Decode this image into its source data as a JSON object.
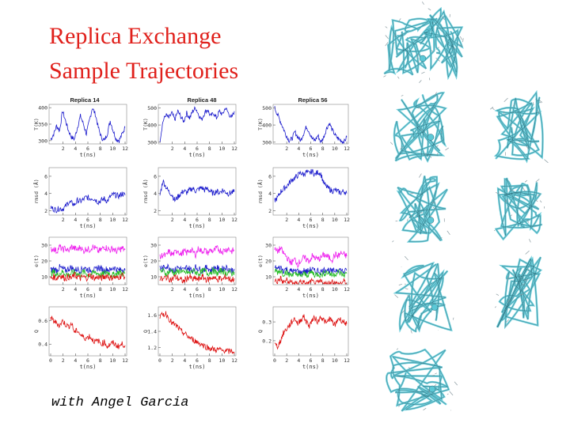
{
  "title": {
    "line1": "Replica Exchange",
    "line2": "Sample Trajectories"
  },
  "credit": "with Angel Garcia",
  "colors": {
    "title": "#e0201b",
    "blue": "#1a1acc",
    "red": "#dd1111",
    "magenta": "#ee22ee",
    "green": "#22bb22",
    "protein": "#5bc8d6"
  },
  "columns": [
    "Replica 14",
    "Replica 48",
    "Replica 56"
  ],
  "chart_data": [
    {
      "type": "line",
      "replica": "Replica 14",
      "ylabel": "T(K)",
      "xlabel": "t(ns)",
      "xticks": [
        2,
        4,
        6,
        8,
        10,
        12
      ],
      "yticks": [
        300,
        350,
        400
      ],
      "ylim": [
        290,
        410
      ],
      "series": [
        {
          "color": "#1a1acc",
          "values": [
            303,
            320,
            345,
            330,
            390,
            360,
            330,
            310,
            305,
            340,
            375,
            350,
            320,
            360,
            400,
            380,
            340,
            310,
            300,
            320,
            360,
            330,
            305,
            300,
            320,
            340
          ]
        }
      ]
    },
    {
      "type": "line",
      "replica": "Replica 48",
      "ylabel": "T(K)",
      "xlabel": "t(ns)",
      "xticks": [
        2,
        4,
        6,
        8,
        10,
        12
      ],
      "yticks": [
        300,
        400,
        500
      ],
      "ylim": [
        290,
        520
      ],
      "series": [
        {
          "color": "#1a1acc",
          "values": [
            310,
            420,
            460,
            440,
            470,
            430,
            480,
            450,
            420,
            470,
            440,
            480,
            500,
            460,
            430,
            470,
            490,
            450,
            470,
            440,
            480,
            460,
            500,
            470,
            440,
            480
          ]
        }
      ]
    },
    {
      "type": "line",
      "replica": "Replica 56",
      "ylabel": "T(K)",
      "xlabel": "t(ns)",
      "xticks": [
        2,
        4,
        6,
        8,
        10,
        12
      ],
      "yticks": [
        300,
        400,
        500
      ],
      "ylim": [
        290,
        520
      ],
      "series": [
        {
          "color": "#1a1acc",
          "values": [
            500,
            460,
            420,
            380,
            340,
            310,
            320,
            360,
            330,
            310,
            350,
            390,
            360,
            320,
            310,
            340,
            300,
            330,
            380,
            410,
            370,
            340,
            320,
            310,
            300,
            330
          ]
        }
      ]
    },
    {
      "type": "line",
      "ylabel": "rmsd (Å)",
      "xlabel": "t(ns)",
      "xticks": [
        2,
        4,
        6,
        8,
        10,
        12
      ],
      "yticks": [
        2,
        4,
        6
      ],
      "ylim": [
        1.5,
        7
      ],
      "series": [
        {
          "color": "#1a1acc",
          "values": [
            2.4,
            2.2,
            2.1,
            2.3,
            2.2,
            2.5,
            3.0,
            2.9,
            2.7,
            3.2,
            3.1,
            3.3,
            3.6,
            3.4,
            3.5,
            3.3,
            3.0,
            3.2,
            3.4,
            3.1,
            3.6,
            3.9,
            3.8,
            3.7,
            4.0,
            3.8
          ]
        }
      ]
    },
    {
      "type": "line",
      "ylabel": "rmsd (Å)",
      "xlabel": "t(ns)",
      "xticks": [
        2,
        4,
        6,
        8,
        10,
        12
      ],
      "yticks": [
        2,
        4,
        6
      ],
      "ylim": [
        1.5,
        7
      ],
      "series": [
        {
          "color": "#1a1acc",
          "values": [
            3.8,
            5.5,
            4.8,
            4.2,
            3.9,
            3.2,
            3.6,
            4.0,
            4.3,
            4.1,
            4.4,
            4.6,
            4.3,
            4.5,
            4.7,
            4.4,
            4.6,
            4.2,
            4.0,
            4.3,
            4.1,
            4.4,
            4.2,
            4.0,
            4.1,
            4.2
          ]
        }
      ]
    },
    {
      "type": "line",
      "ylabel": "rmsd (Å)",
      "xlabel": "t(ns)",
      "xticks": [
        2,
        4,
        6,
        8,
        10,
        12
      ],
      "yticks": [
        2,
        4,
        6
      ],
      "ylim": [
        1.5,
        7
      ],
      "series": [
        {
          "color": "#1a1acc",
          "values": [
            3.2,
            3.5,
            4.2,
            4.5,
            4.8,
            5.2,
            5.6,
            5.8,
            6.1,
            6.4,
            6.2,
            6.5,
            6.3,
            6.6,
            6.2,
            6.5,
            6.3,
            5.2,
            4.8,
            4.5,
            4.3,
            4.4,
            4.2,
            4.1,
            4.3,
            4.0
          ]
        }
      ]
    },
    {
      "type": "line",
      "ylabel": "e(t)",
      "xlabel": "t(ns)",
      "xticks": [
        2,
        4,
        6,
        8,
        10,
        12
      ],
      "yticks": [
        10,
        20,
        30
      ],
      "ylim": [
        5,
        35
      ],
      "series": [
        {
          "color": "#ee22ee",
          "values": [
            27,
            28,
            26,
            29,
            27,
            28,
            26,
            29,
            28,
            27,
            29,
            26,
            28,
            27,
            29,
            28,
            26,
            27,
            29,
            28,
            27,
            28,
            26,
            27,
            28,
            27
          ]
        },
        {
          "color": "#1a1acc",
          "values": [
            14,
            15,
            14,
            16,
            15,
            14,
            15,
            16,
            14,
            15,
            14,
            16,
            15,
            14,
            15,
            14,
            16,
            15,
            14,
            15,
            14,
            16,
            15,
            14,
            15,
            14
          ]
        },
        {
          "color": "#22bb22",
          "values": [
            12,
            13,
            11,
            12,
            13,
            12,
            11,
            12,
            13,
            12,
            11,
            13,
            12,
            11,
            12,
            13,
            12,
            11,
            12,
            13,
            12,
            11,
            12,
            13,
            12,
            12
          ]
        },
        {
          "color": "#dd1111",
          "values": [
            9,
            10,
            9,
            11,
            10,
            9,
            10,
            9,
            11,
            10,
            9,
            10,
            9,
            11,
            10,
            9,
            10,
            9,
            10,
            11,
            9,
            10,
            9,
            10,
            11,
            10
          ]
        }
      ]
    },
    {
      "type": "line",
      "ylabel": "e(t)",
      "xlabel": "t(ns)",
      "xticks": [
        2,
        4,
        6,
        8,
        10,
        12
      ],
      "yticks": [
        10,
        20,
        30
      ],
      "ylim": [
        5,
        35
      ],
      "series": [
        {
          "color": "#ee22ee",
          "values": [
            22,
            24,
            23,
            26,
            24,
            25,
            27,
            24,
            26,
            25,
            27,
            26,
            24,
            28,
            26,
            27,
            25,
            27,
            26,
            28,
            27,
            26,
            27,
            28,
            26,
            27
          ]
        },
        {
          "color": "#1a1acc",
          "values": [
            16,
            15,
            17,
            16,
            15,
            14,
            16,
            15,
            14,
            16,
            15,
            14,
            16,
            15,
            14,
            15,
            16,
            14,
            15,
            16,
            14,
            15,
            16,
            15,
            14,
            15
          ]
        },
        {
          "color": "#22bb22",
          "values": [
            13,
            14,
            12,
            13,
            14,
            12,
            13,
            14,
            12,
            13,
            12,
            14,
            13,
            12,
            13,
            14,
            12,
            13,
            14,
            12,
            13,
            14,
            12,
            13,
            12,
            13
          ]
        },
        {
          "color": "#dd1111",
          "values": [
            9,
            8,
            10,
            9,
            8,
            10,
            9,
            8,
            7,
            9,
            10,
            8,
            9,
            8,
            10,
            9,
            8,
            9,
            10,
            8,
            9,
            8,
            10,
            9,
            8,
            9
          ]
        }
      ]
    },
    {
      "type": "line",
      "ylabel": "e(t)",
      "xlabel": "t(ns)",
      "xticks": [
        2,
        4,
        6,
        8,
        10,
        12
      ],
      "yticks": [
        10,
        20,
        30
      ],
      "ylim": [
        5,
        35
      ],
      "series": [
        {
          "color": "#ee22ee",
          "values": [
            27,
            26,
            28,
            25,
            23,
            20,
            19,
            21,
            18,
            20,
            22,
            21,
            20,
            23,
            22,
            21,
            22,
            24,
            23,
            22,
            21,
            24,
            23,
            25,
            24,
            23
          ]
        },
        {
          "color": "#1a1acc",
          "values": [
            16,
            15,
            16,
            14,
            15,
            13,
            14,
            13,
            14,
            12,
            14,
            13,
            14,
            15,
            13,
            14,
            13,
            14,
            15,
            14,
            13,
            14,
            15,
            14,
            13,
            14
          ]
        },
        {
          "color": "#22bb22",
          "values": [
            14,
            13,
            14,
            12,
            13,
            11,
            12,
            11,
            12,
            10,
            12,
            11,
            12,
            13,
            11,
            12,
            11,
            12,
            13,
            12,
            11,
            12,
            13,
            12,
            11,
            12
          ]
        },
        {
          "color": "#dd1111",
          "values": [
            8,
            7,
            9,
            6,
            8,
            6,
            7,
            5,
            6,
            7,
            6,
            5,
            6,
            7,
            5,
            6,
            7,
            6,
            5,
            6,
            7,
            6,
            5,
            6,
            7,
            6
          ]
        }
      ]
    },
    {
      "type": "line",
      "ylabel": "Q",
      "xlabel": "t(ns)",
      "xticks": [
        0,
        2,
        4,
        6,
        8,
        10,
        12
      ],
      "yticks": [
        0.4,
        0.6
      ],
      "ylim": [
        0.3,
        0.72
      ],
      "series": [
        {
          "color": "#dd1111",
          "values": [
            0.62,
            0.6,
            0.58,
            0.56,
            0.6,
            0.57,
            0.55,
            0.58,
            0.5,
            0.52,
            0.48,
            0.46,
            0.45,
            0.47,
            0.44,
            0.42,
            0.43,
            0.4,
            0.42,
            0.38,
            0.4,
            0.41,
            0.39,
            0.38,
            0.4,
            0.39
          ]
        }
      ]
    },
    {
      "type": "line",
      "ylabel": "Q",
      "xlabel": "t(ns)",
      "xticks": [
        0,
        2,
        4,
        6,
        8,
        10,
        12
      ],
      "yticks": [
        1.2,
        1.4,
        1.6
      ],
      "ylim": [
        1.1,
        1.7
      ],
      "series": [
        {
          "color": "#dd1111",
          "values": [
            1.58,
            1.6,
            1.62,
            1.56,
            1.5,
            1.48,
            1.45,
            1.4,
            1.38,
            1.35,
            1.32,
            1.3,
            1.28,
            1.26,
            1.24,
            1.22,
            1.2,
            1.19,
            1.18,
            1.17,
            1.18,
            1.16,
            1.17,
            1.15,
            1.16,
            1.15
          ]
        }
      ]
    },
    {
      "type": "line",
      "ylabel": "Q",
      "xlabel": "t(ns)",
      "xticks": [
        0,
        2,
        4,
        6,
        8,
        10,
        12
      ],
      "yticks": [
        0.2,
        0.3
      ],
      "ylim": [
        0.12,
        0.38
      ],
      "series": [
        {
          "color": "#dd1111",
          "values": [
            0.18,
            0.17,
            0.2,
            0.24,
            0.26,
            0.28,
            0.3,
            0.32,
            0.29,
            0.31,
            0.33,
            0.3,
            0.28,
            0.31,
            0.32,
            0.3,
            0.33,
            0.31,
            0.29,
            0.32,
            0.3,
            0.28,
            0.32,
            0.31,
            0.3,
            0.29
          ]
        }
      ]
    }
  ]
}
